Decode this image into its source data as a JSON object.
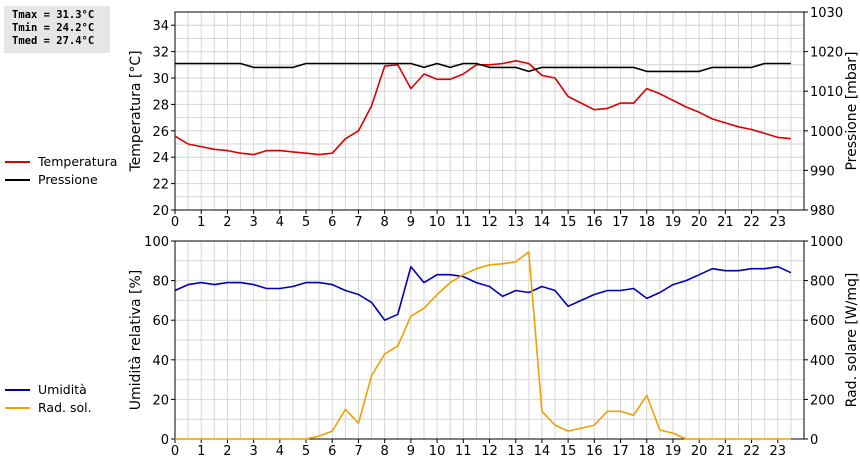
{
  "stats": {
    "tmax": "Tmax = 31.3°C",
    "tmin": "Tmin = 24.2°C",
    "tmed": "Tmed = 27.4°C"
  },
  "colors": {
    "temperatura": "#dd0000",
    "pressione": "#000000",
    "umidita": "#0000bb",
    "radsol": "#f0a000"
  },
  "chart_data": [
    {
      "type": "line",
      "grid": true,
      "legend_position": "left",
      "x_ticks": [
        0,
        1,
        2,
        3,
        4,
        5,
        6,
        7,
        8,
        9,
        10,
        11,
        12,
        13,
        14,
        15,
        16,
        17,
        18,
        19,
        20,
        21,
        22,
        23
      ],
      "xlim": [
        0,
        24
      ],
      "ylabel": "Temperatura [°C]",
      "ylim": [
        20,
        35
      ],
      "y_ticks": [
        20,
        22,
        24,
        26,
        28,
        30,
        32,
        34
      ],
      "y2label": "Pressione [mbar]",
      "y2lim": [
        980,
        1030
      ],
      "y2_ticks": [
        980,
        990,
        1000,
        1010,
        1020,
        1030
      ],
      "series": [
        {
          "name": "Temperatura",
          "axis": "left",
          "x": [
            0,
            0.5,
            1,
            1.5,
            2,
            2.5,
            3,
            3.5,
            4,
            4.5,
            5,
            5.5,
            6,
            6.5,
            7,
            7.5,
            8,
            8.5,
            9,
            9.5,
            10,
            10.5,
            11,
            11.5,
            12,
            12.5,
            13,
            13.5,
            14,
            14.5,
            15,
            15.5,
            16,
            16.5,
            17,
            17.5,
            18,
            18.5,
            19,
            19.5,
            20,
            20.5,
            21,
            21.5,
            22,
            22.5,
            23,
            23.5
          ],
          "y": [
            25.6,
            25.0,
            24.8,
            24.6,
            24.5,
            24.3,
            24.2,
            24.5,
            24.5,
            24.4,
            24.3,
            24.2,
            24.3,
            25.4,
            26.0,
            27.9,
            30.9,
            31.0,
            29.2,
            30.3,
            29.9,
            29.9,
            30.3,
            31.0,
            31.0,
            31.1,
            31.3,
            31.1,
            30.2,
            30.0,
            28.6,
            28.1,
            27.6,
            27.7,
            28.1,
            28.1,
            29.2,
            28.8,
            28.3,
            27.8,
            27.4,
            26.9,
            26.6,
            26.3,
            26.1,
            25.8,
            25.5,
            25.4
          ]
        },
        {
          "name": "Pressione",
          "axis": "right",
          "x": [
            0,
            0.5,
            1,
            1.5,
            2,
            2.5,
            3,
            3.5,
            4,
            4.5,
            5,
            5.5,
            6,
            6.5,
            7,
            7.5,
            8,
            8.5,
            9,
            9.5,
            10,
            10.5,
            11,
            11.5,
            12,
            12.5,
            13,
            13.5,
            14,
            14.5,
            15,
            15.5,
            16,
            16.5,
            17,
            17.5,
            18,
            18.5,
            19,
            19.5,
            20,
            20.5,
            21,
            21.5,
            22,
            22.5,
            23,
            23.5
          ],
          "y": [
            1017,
            1017,
            1017,
            1017,
            1017,
            1017,
            1016,
            1016,
            1016,
            1016,
            1017,
            1017,
            1017,
            1017,
            1017,
            1017,
            1017,
            1017,
            1017,
            1016,
            1017,
            1016,
            1017,
            1017,
            1016,
            1016,
            1016,
            1015,
            1016,
            1016,
            1016,
            1016,
            1016,
            1016,
            1016,
            1016,
            1015,
            1015,
            1015,
            1015,
            1015,
            1016,
            1016,
            1016,
            1016,
            1017,
            1017,
            1017
          ]
        }
      ]
    },
    {
      "type": "line",
      "grid": true,
      "legend_position": "left",
      "x_ticks": [
        0,
        1,
        2,
        3,
        4,
        5,
        6,
        7,
        8,
        9,
        10,
        11,
        12,
        13,
        14,
        15,
        16,
        17,
        18,
        19,
        20,
        21,
        22,
        23
      ],
      "xlim": [
        0,
        24
      ],
      "ylabel": "Umidità relativa [%]",
      "ylim": [
        0,
        100
      ],
      "y_ticks": [
        0,
        20,
        40,
        60,
        80,
        100
      ],
      "y2label": "Rad. solare [W/mq]",
      "y2lim": [
        0,
        1000
      ],
      "y2_ticks": [
        0,
        200,
        400,
        600,
        800,
        1000
      ],
      "series": [
        {
          "name": "Umidità",
          "axis": "left",
          "x": [
            0,
            0.5,
            1,
            1.5,
            2,
            2.5,
            3,
            3.5,
            4,
            4.5,
            5,
            5.5,
            6,
            6.5,
            7,
            7.5,
            8,
            8.5,
            9,
            9.5,
            10,
            10.5,
            11,
            11.5,
            12,
            12.5,
            13,
            13.5,
            14,
            14.5,
            15,
            15.5,
            16,
            16.5,
            17,
            17.5,
            18,
            18.5,
            19,
            19.5,
            20,
            20.5,
            21,
            21.5,
            22,
            22.5,
            23,
            23.5
          ],
          "y": [
            75,
            78,
            79,
            78,
            79,
            79,
            78,
            76,
            76,
            77,
            79,
            79,
            78,
            75,
            73,
            69,
            60,
            63,
            87,
            79,
            83,
            83,
            82,
            79,
            77,
            72,
            75,
            74,
            77,
            75,
            67,
            70,
            73,
            75,
            75,
            76,
            71,
            74,
            78,
            80,
            83,
            86,
            85,
            85,
            86,
            86,
            87,
            84
          ]
        },
        {
          "name": "Rad. sol.",
          "axis": "right",
          "x": [
            0,
            0.5,
            1,
            1.5,
            2,
            2.5,
            3,
            3.5,
            4,
            4.5,
            5,
            5.5,
            6,
            6.5,
            7,
            7.5,
            8,
            8.5,
            9,
            9.5,
            10,
            10.5,
            11,
            11.5,
            12,
            12.5,
            13,
            13.5,
            14,
            14.5,
            15,
            15.5,
            16,
            16.5,
            17,
            17.5,
            18,
            18.5,
            19,
            19.5,
            20,
            20.5,
            21,
            21.5,
            22,
            22.5,
            23,
            23.5
          ],
          "y": [
            0,
            0,
            0,
            0,
            0,
            0,
            0,
            0,
            0,
            0,
            0,
            15,
            40,
            150,
            80,
            320,
            430,
            470,
            620,
            660,
            730,
            790,
            830,
            860,
            880,
            885,
            895,
            945,
            140,
            70,
            40,
            55,
            70,
            140,
            140,
            120,
            220,
            45,
            30,
            0,
            0,
            0,
            0,
            0,
            0,
            0,
            0,
            0
          ]
        }
      ]
    }
  ]
}
